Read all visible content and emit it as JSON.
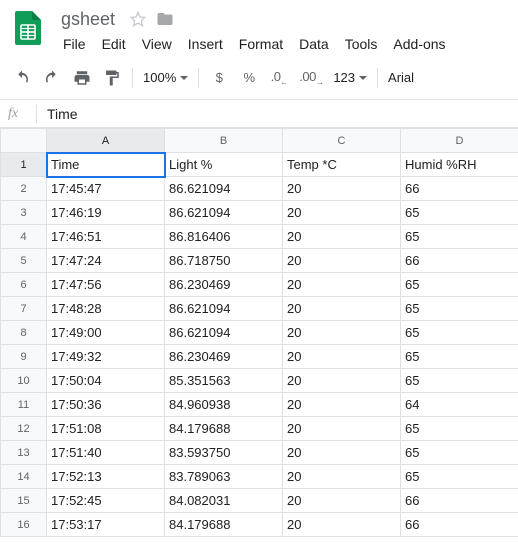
{
  "doc": {
    "title": "gsheet"
  },
  "menubar": {
    "file": "File",
    "edit": "Edit",
    "view": "View",
    "insert": "Insert",
    "format": "Format",
    "data": "Data",
    "tools": "Tools",
    "addons": "Add-ons"
  },
  "toolbar": {
    "zoom": "100%",
    "dollar": "$",
    "percent": "%",
    "dec_dec": ".0",
    "dec_inc": ".00",
    "num_format": "123",
    "font": "Arial"
  },
  "formula": {
    "fx": "fx",
    "value": "Time"
  },
  "columns": {
    "A": "A",
    "B": "B",
    "C": "C",
    "D": "D"
  },
  "headers": {
    "A": "Time",
    "B": "Light %",
    "C": "Temp *C",
    "D": "Humid %RH"
  },
  "active_cell": "A1",
  "rows": [
    {
      "n": "1",
      "A": "Time",
      "B": "Light %",
      "C": "Temp *C",
      "D": "Humid %RH"
    },
    {
      "n": "2",
      "A": "17:45:47",
      "B": "86.621094",
      "C": "20",
      "D": "66"
    },
    {
      "n": "3",
      "A": "17:46:19",
      "B": "86.621094",
      "C": "20",
      "D": "65"
    },
    {
      "n": "4",
      "A": "17:46:51",
      "B": "86.816406",
      "C": "20",
      "D": "65"
    },
    {
      "n": "5",
      "A": "17:47:24",
      "B": "86.718750",
      "C": "20",
      "D": "66"
    },
    {
      "n": "6",
      "A": "17:47:56",
      "B": "86.230469",
      "C": "20",
      "D": "65"
    },
    {
      "n": "7",
      "A": "17:48:28",
      "B": "86.621094",
      "C": "20",
      "D": "65"
    },
    {
      "n": "8",
      "A": "17:49:00",
      "B": "86.621094",
      "C": "20",
      "D": "65"
    },
    {
      "n": "9",
      "A": "17:49:32",
      "B": "86.230469",
      "C": "20",
      "D": "65"
    },
    {
      "n": "10",
      "A": "17:50:04",
      "B": "85.351563",
      "C": "20",
      "D": "65"
    },
    {
      "n": "11",
      "A": "17:50:36",
      "B": "84.960938",
      "C": "20",
      "D": "64"
    },
    {
      "n": "12",
      "A": "17:51:08",
      "B": "84.179688",
      "C": "20",
      "D": "65"
    },
    {
      "n": "13",
      "A": "17:51:40",
      "B": "83.593750",
      "C": "20",
      "D": "65"
    },
    {
      "n": "14",
      "A": "17:52:13",
      "B": "83.789063",
      "C": "20",
      "D": "65"
    },
    {
      "n": "15",
      "A": "17:52:45",
      "B": "84.082031",
      "C": "20",
      "D": "66"
    },
    {
      "n": "16",
      "A": "17:53:17",
      "B": "84.179688",
      "C": "20",
      "D": "66"
    }
  ],
  "colors": {
    "brand_green": "#0f9d58",
    "selection_blue": "#1a73e8",
    "grid_border": "#e0e0e0",
    "header_bg": "#f8f9fa",
    "muted_text": "#5f6368"
  }
}
